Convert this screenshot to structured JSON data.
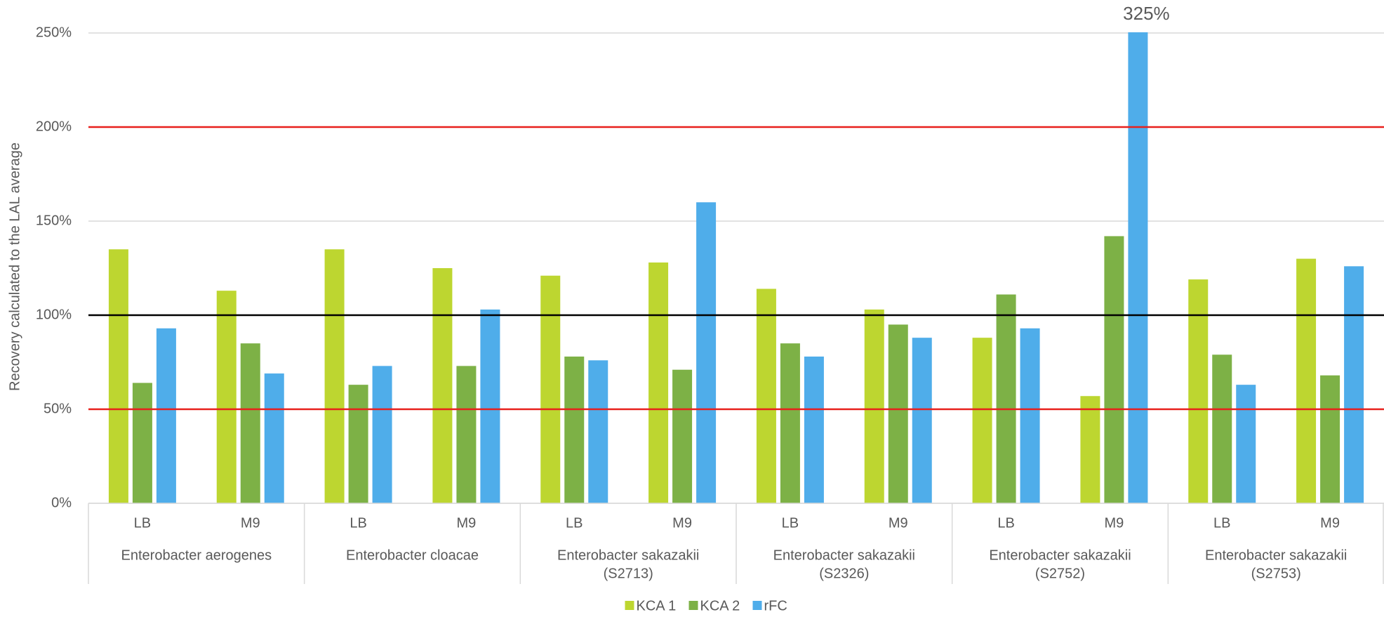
{
  "chart_data": {
    "type": "bar",
    "y_label": "Recovery calculated to the LAL average",
    "groups": [
      {
        "label": [
          "Enterobacter aerogenes"
        ],
        "categories": [
          "LB",
          "M9"
        ]
      },
      {
        "label": [
          "Enterobacter cloacae"
        ],
        "categories": [
          "LB",
          "M9"
        ]
      },
      {
        "label": [
          "Enterobacter sakazakii",
          "(S2713)"
        ],
        "categories": [
          "LB",
          "M9"
        ]
      },
      {
        "label": [
          "Enterobacter sakazakii",
          "(S2326)"
        ],
        "categories": [
          "LB",
          "M9"
        ]
      },
      {
        "label": [
          "Enterobacter sakazakii",
          "(S2752)"
        ],
        "categories": [
          "LB",
          "M9"
        ]
      },
      {
        "label": [
          "Enterobacter sakazakii",
          "(S2753)"
        ],
        "categories": [
          "LB",
          "M9"
        ]
      }
    ],
    "series": [
      {
        "name": "KCA 1",
        "color": "#bdd630",
        "values": [
          135,
          113,
          135,
          125,
          121,
          128,
          114,
          103,
          88,
          57,
          119,
          130
        ]
      },
      {
        "name": "KCA 2",
        "color": "#7db146",
        "values": [
          64,
          85,
          63,
          73,
          78,
          71,
          85,
          95,
          111,
          142,
          79,
          68
        ]
      },
      {
        "name": "rFC",
        "color": "#4fadea",
        "values": [
          93,
          69,
          73,
          103,
          76,
          160,
          78,
          88,
          93,
          325,
          63,
          126
        ],
        "value_labels": [
          null,
          null,
          null,
          null,
          null,
          null,
          null,
          null,
          null,
          "325%",
          null,
          null
        ]
      }
    ],
    "ylim": [
      0,
      250
    ],
    "yticks": [
      {
        "value": 0,
        "label": "0%"
      },
      {
        "value": 50,
        "label": "50%"
      },
      {
        "value": 100,
        "label": "100%"
      },
      {
        "value": 150,
        "label": "150%"
      },
      {
        "value": 200,
        "label": "200%"
      },
      {
        "value": 250,
        "label": "250%"
      }
    ],
    "grid": true,
    "reference_lines": [
      {
        "value": 50,
        "color": "#e8201c"
      },
      {
        "value": 100,
        "color": "#000000"
      },
      {
        "value": 200,
        "color": "#e8201c"
      }
    ],
    "legend": "bottom"
  }
}
